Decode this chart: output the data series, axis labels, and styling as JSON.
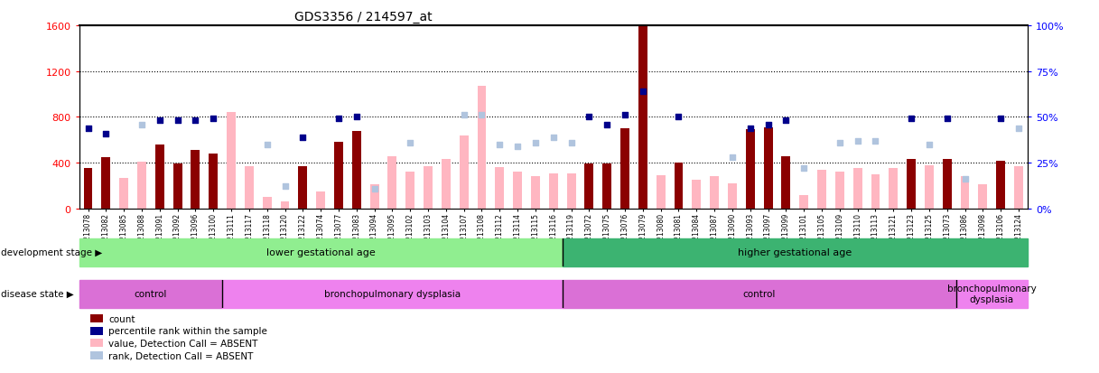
{
  "title": "GDS3356 / 214597_at",
  "samples": [
    "GSM213078",
    "GSM213082",
    "GSM213085",
    "GSM213088",
    "GSM213091",
    "GSM213092",
    "GSM213096",
    "GSM213100",
    "GSM213111",
    "GSM213117",
    "GSM213118",
    "GSM213120",
    "GSM213122",
    "GSM213074",
    "GSM213077",
    "GSM213083",
    "GSM213094",
    "GSM213095",
    "GSM213102",
    "GSM213103",
    "GSM213104",
    "GSM213107",
    "GSM213108",
    "GSM213112",
    "GSM213114",
    "GSM213115",
    "GSM213116",
    "GSM213119",
    "GSM213072",
    "GSM213075",
    "GSM213076",
    "GSM213079",
    "GSM213080",
    "GSM213081",
    "GSM213084",
    "GSM213087",
    "GSM213090",
    "GSM213093",
    "GSM213097",
    "GSM213099",
    "GSM213101",
    "GSM213105",
    "GSM213109",
    "GSM213110",
    "GSM213113",
    "GSM213121",
    "GSM213123",
    "GSM213125",
    "GSM213073",
    "GSM213086",
    "GSM213098",
    "GSM213106",
    "GSM213124"
  ],
  "count_values": [
    350,
    450,
    270,
    410,
    560,
    390,
    510,
    480,
    840,
    370,
    100,
    65,
    370,
    150,
    580,
    680,
    210,
    460,
    320,
    370,
    430,
    640,
    1070,
    360,
    320,
    280,
    310,
    310,
    390,
    390,
    700,
    1590,
    290,
    400,
    250,
    280,
    220,
    690,
    710,
    460,
    120,
    340,
    320,
    350,
    300,
    350,
    430,
    380,
    430,
    280,
    210,
    420,
    370
  ],
  "count_is_present": [
    true,
    true,
    false,
    false,
    true,
    true,
    true,
    true,
    false,
    false,
    false,
    false,
    true,
    false,
    true,
    true,
    false,
    false,
    false,
    false,
    false,
    false,
    false,
    false,
    false,
    false,
    false,
    false,
    true,
    true,
    true,
    true,
    false,
    true,
    false,
    false,
    false,
    true,
    true,
    true,
    false,
    false,
    false,
    false,
    false,
    false,
    true,
    false,
    true,
    false,
    false,
    true,
    false
  ],
  "rank_values_pct": [
    44,
    41,
    null,
    46,
    48,
    48,
    48,
    49,
    null,
    null,
    35,
    12,
    39,
    null,
    49,
    50,
    11,
    null,
    36,
    null,
    null,
    51,
    51,
    35,
    34,
    36,
    39,
    36,
    50,
    46,
    51,
    64,
    null,
    50,
    null,
    null,
    28,
    44,
    46,
    48,
    22,
    null,
    36,
    37,
    37,
    null,
    49,
    35,
    49,
    16,
    null,
    49,
    44
  ],
  "rank_is_present": [
    true,
    true,
    false,
    false,
    true,
    true,
    true,
    true,
    false,
    false,
    false,
    false,
    true,
    false,
    true,
    true,
    false,
    false,
    false,
    false,
    false,
    false,
    false,
    false,
    false,
    false,
    false,
    false,
    true,
    true,
    true,
    true,
    false,
    true,
    false,
    false,
    false,
    true,
    true,
    true,
    false,
    false,
    false,
    false,
    false,
    false,
    true,
    false,
    true,
    false,
    false,
    true,
    false
  ],
  "ylim_left": [
    0,
    1600
  ],
  "ylim_right": [
    0,
    100
  ],
  "yticks_left": [
    0,
    400,
    800,
    1200,
    1600
  ],
  "yticks_right": [
    0,
    25,
    50,
    75,
    100
  ],
  "color_count_present": "#8B0000",
  "color_count_absent": "#FFB6C1",
  "color_rank_present": "#00008B",
  "color_rank_absent": "#B0C4DE",
  "development_stage_groups": [
    {
      "label": "lower gestational age",
      "start": 0,
      "end": 27,
      "color": "#90EE90"
    },
    {
      "label": "higher gestational age",
      "start": 27,
      "end": 53,
      "color": "#3CB371"
    }
  ],
  "disease_state_groups": [
    {
      "label": "control",
      "start": 0,
      "end": 8,
      "color": "#DA70D6"
    },
    {
      "label": "bronchopulmonary dysplasia",
      "start": 8,
      "end": 27,
      "color": "#EE82EE"
    },
    {
      "label": "control",
      "start": 27,
      "end": 49,
      "color": "#DA70D6"
    },
    {
      "label": "bronchopulmonary\ndysplasia",
      "start": 49,
      "end": 53,
      "color": "#EE82EE"
    }
  ],
  "legend_items": [
    {
      "label": "count",
      "color": "#8B0000"
    },
    {
      "label": "percentile rank within the sample",
      "color": "#00008B"
    },
    {
      "label": "value, Detection Call = ABSENT",
      "color": "#FFB6C1"
    },
    {
      "label": "rank, Detection Call = ABSENT",
      "color": "#B0C4DE"
    }
  ]
}
